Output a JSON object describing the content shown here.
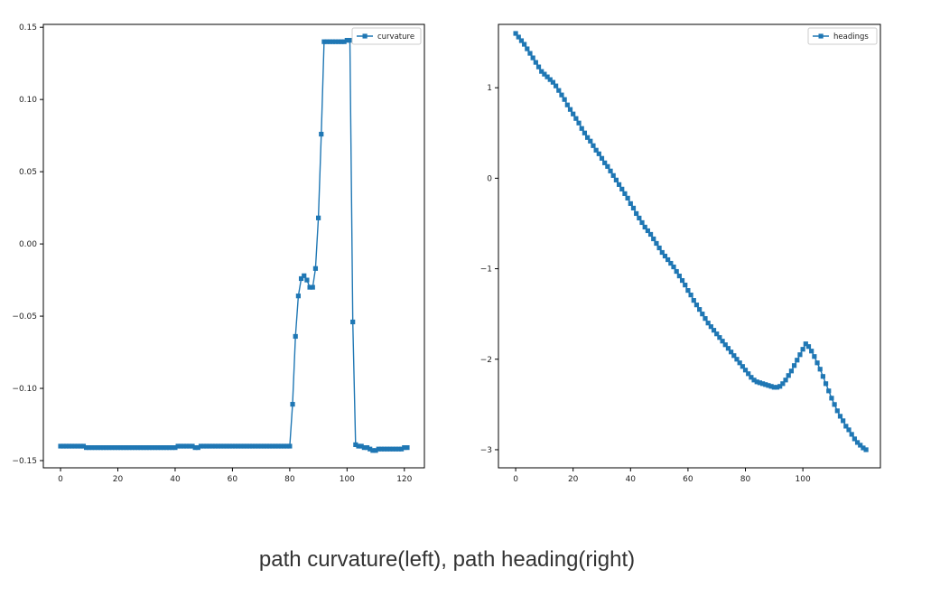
{
  "caption": "path curvature(left), path heading(right)",
  "colors": {
    "series": "#1f77b4",
    "axis": "#000000",
    "legend_border": "#cccccc"
  },
  "chart_data": [
    {
      "type": "line",
      "marker": "square",
      "legend_placement": "top-right",
      "grid": false,
      "xlim": [
        -6,
        127
      ],
      "ylim": [
        -0.155,
        0.152
      ],
      "xticks": [
        0,
        20,
        40,
        60,
        80,
        100,
        120
      ],
      "xtick_labels": [
        "0",
        "20",
        "40",
        "60",
        "80",
        "100",
        "120"
      ],
      "yticks": [
        -0.15,
        -0.1,
        -0.05,
        0.0,
        0.05,
        0.1,
        0.15
      ],
      "ytick_labels": [
        "−0.15",
        "−0.10",
        "−0.05",
        "0.00",
        "0.05",
        "0.10",
        "0.15"
      ],
      "series": [
        {
          "name": "curvature",
          "x": [
            0,
            1,
            2,
            3,
            4,
            5,
            6,
            7,
            8,
            9,
            10,
            11,
            12,
            13,
            14,
            15,
            16,
            17,
            18,
            19,
            20,
            21,
            22,
            23,
            24,
            25,
            26,
            27,
            28,
            29,
            30,
            31,
            32,
            33,
            34,
            35,
            36,
            37,
            38,
            39,
            40,
            41,
            42,
            43,
            44,
            45,
            46,
            47,
            48,
            49,
            50,
            51,
            52,
            53,
            54,
            55,
            56,
            57,
            58,
            59,
            60,
            61,
            62,
            63,
            64,
            65,
            66,
            67,
            68,
            69,
            70,
            71,
            72,
            73,
            74,
            75,
            76,
            77,
            78,
            79,
            80,
            81,
            82,
            83,
            84,
            85,
            86,
            87,
            88,
            89,
            90,
            91,
            92,
            93,
            94,
            95,
            96,
            97,
            98,
            99,
            100,
            101,
            102,
            103,
            104,
            105,
            106,
            107,
            108,
            109,
            110,
            111,
            112,
            113,
            114,
            115,
            116,
            117,
            118,
            119,
            120,
            121
          ],
          "y": [
            -0.14,
            -0.14,
            -0.14,
            -0.14,
            -0.14,
            -0.14,
            -0.14,
            -0.14,
            -0.14,
            -0.141,
            -0.141,
            -0.141,
            -0.141,
            -0.141,
            -0.141,
            -0.141,
            -0.141,
            -0.141,
            -0.141,
            -0.141,
            -0.141,
            -0.141,
            -0.141,
            -0.141,
            -0.141,
            -0.141,
            -0.141,
            -0.141,
            -0.141,
            -0.141,
            -0.141,
            -0.141,
            -0.141,
            -0.141,
            -0.141,
            -0.141,
            -0.141,
            -0.141,
            -0.141,
            -0.141,
            -0.141,
            -0.14,
            -0.14,
            -0.14,
            -0.14,
            -0.14,
            -0.14,
            -0.141,
            -0.141,
            -0.14,
            -0.14,
            -0.14,
            -0.14,
            -0.14,
            -0.14,
            -0.14,
            -0.14,
            -0.14,
            -0.14,
            -0.14,
            -0.14,
            -0.14,
            -0.14,
            -0.14,
            -0.14,
            -0.14,
            -0.14,
            -0.14,
            -0.14,
            -0.14,
            -0.14,
            -0.14,
            -0.14,
            -0.14,
            -0.14,
            -0.14,
            -0.14,
            -0.14,
            -0.14,
            -0.14,
            -0.14,
            -0.111,
            -0.064,
            -0.036,
            -0.024,
            -0.022,
            -0.025,
            -0.03,
            -0.03,
            -0.017,
            0.018,
            0.076,
            0.14,
            0.14,
            0.14,
            0.14,
            0.14,
            0.14,
            0.14,
            0.14,
            0.141,
            0.141,
            -0.054,
            -0.139,
            -0.14,
            -0.14,
            -0.141,
            -0.141,
            -0.142,
            -0.143,
            -0.143,
            -0.142,
            -0.142,
            -0.142,
            -0.142,
            -0.142,
            -0.142,
            -0.142,
            -0.142,
            -0.142,
            -0.141,
            -0.141
          ]
        }
      ]
    },
    {
      "type": "line",
      "marker": "square",
      "legend_placement": "top-right",
      "grid": false,
      "xlim": [
        -6,
        127
      ],
      "ylim": [
        -3.2,
        1.7
      ],
      "xticks": [
        0,
        20,
        40,
        60,
        80,
        100
      ],
      "xtick_labels": [
        "0",
        "20",
        "40",
        "60",
        "80",
        "100"
      ],
      "yticks": [
        -3,
        -2,
        -1,
        0,
        1
      ],
      "ytick_labels": [
        "−3",
        "−2",
        "−1",
        "0",
        "1"
      ],
      "series": [
        {
          "name": "headings",
          "x": [
            0,
            1,
            2,
            3,
            4,
            5,
            6,
            7,
            8,
            9,
            10,
            11,
            12,
            13,
            14,
            15,
            16,
            17,
            18,
            19,
            20,
            21,
            22,
            23,
            24,
            25,
            26,
            27,
            28,
            29,
            30,
            31,
            32,
            33,
            34,
            35,
            36,
            37,
            38,
            39,
            40,
            41,
            42,
            43,
            44,
            45,
            46,
            47,
            48,
            49,
            50,
            51,
            52,
            53,
            54,
            55,
            56,
            57,
            58,
            59,
            60,
            61,
            62,
            63,
            64,
            65,
            66,
            67,
            68,
            69,
            70,
            71,
            72,
            73,
            74,
            75,
            76,
            77,
            78,
            79,
            80,
            81,
            82,
            83,
            84,
            85,
            86,
            87,
            88,
            89,
            90,
            91,
            92,
            93,
            94,
            95,
            96,
            97,
            98,
            99,
            100,
            101,
            102,
            103,
            104,
            105,
            106,
            107,
            108,
            109,
            110,
            111,
            112,
            113,
            114,
            115,
            116,
            117,
            118,
            119,
            120,
            121,
            122
          ],
          "y": [
            1.6,
            1.56,
            1.52,
            1.48,
            1.43,
            1.38,
            1.33,
            1.28,
            1.23,
            1.18,
            1.15,
            1.12,
            1.09,
            1.06,
            1.02,
            0.97,
            0.92,
            0.87,
            0.81,
            0.76,
            0.71,
            0.66,
            0.61,
            0.55,
            0.5,
            0.45,
            0.41,
            0.36,
            0.31,
            0.27,
            0.22,
            0.17,
            0.13,
            0.08,
            0.03,
            -0.02,
            -0.07,
            -0.12,
            -0.17,
            -0.22,
            -0.28,
            -0.33,
            -0.39,
            -0.44,
            -0.49,
            -0.54,
            -0.58,
            -0.62,
            -0.67,
            -0.72,
            -0.77,
            -0.82,
            -0.86,
            -0.9,
            -0.94,
            -0.98,
            -1.03,
            -1.08,
            -1.13,
            -1.18,
            -1.24,
            -1.29,
            -1.35,
            -1.4,
            -1.45,
            -1.5,
            -1.55,
            -1.6,
            -1.64,
            -1.68,
            -1.72,
            -1.76,
            -1.8,
            -1.84,
            -1.88,
            -1.92,
            -1.96,
            -2.0,
            -2.04,
            -2.08,
            -2.12,
            -2.16,
            -2.2,
            -2.23,
            -2.25,
            -2.26,
            -2.27,
            -2.28,
            -2.29,
            -2.3,
            -2.31,
            -2.31,
            -2.3,
            -2.27,
            -2.23,
            -2.18,
            -2.13,
            -2.07,
            -2.01,
            -1.95,
            -1.89,
            -1.83,
            -1.86,
            -1.91,
            -1.97,
            -2.04,
            -2.11,
            -2.19,
            -2.27,
            -2.35,
            -2.43,
            -2.5,
            -2.57,
            -2.63,
            -2.68,
            -2.74,
            -2.78,
            -2.83,
            -2.88,
            -2.92,
            -2.95,
            -2.98,
            -3.0
          ]
        }
      ]
    }
  ]
}
